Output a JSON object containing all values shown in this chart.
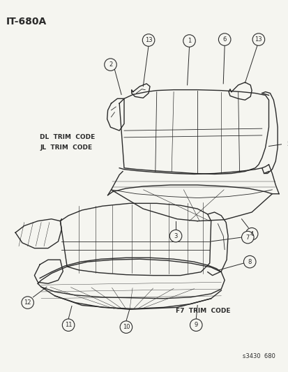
{
  "title": "IT-680A",
  "part_number": "s3430  680",
  "background_color": "#f5f5f0",
  "line_color": "#2a2a2a",
  "upper_label1": "DL  TRIM  CODE",
  "upper_label2": "JL  TRIM  CODE",
  "lower_label": "F7  TRIM  CODE",
  "figsize": [
    4.14,
    5.33
  ],
  "dpi": 100
}
